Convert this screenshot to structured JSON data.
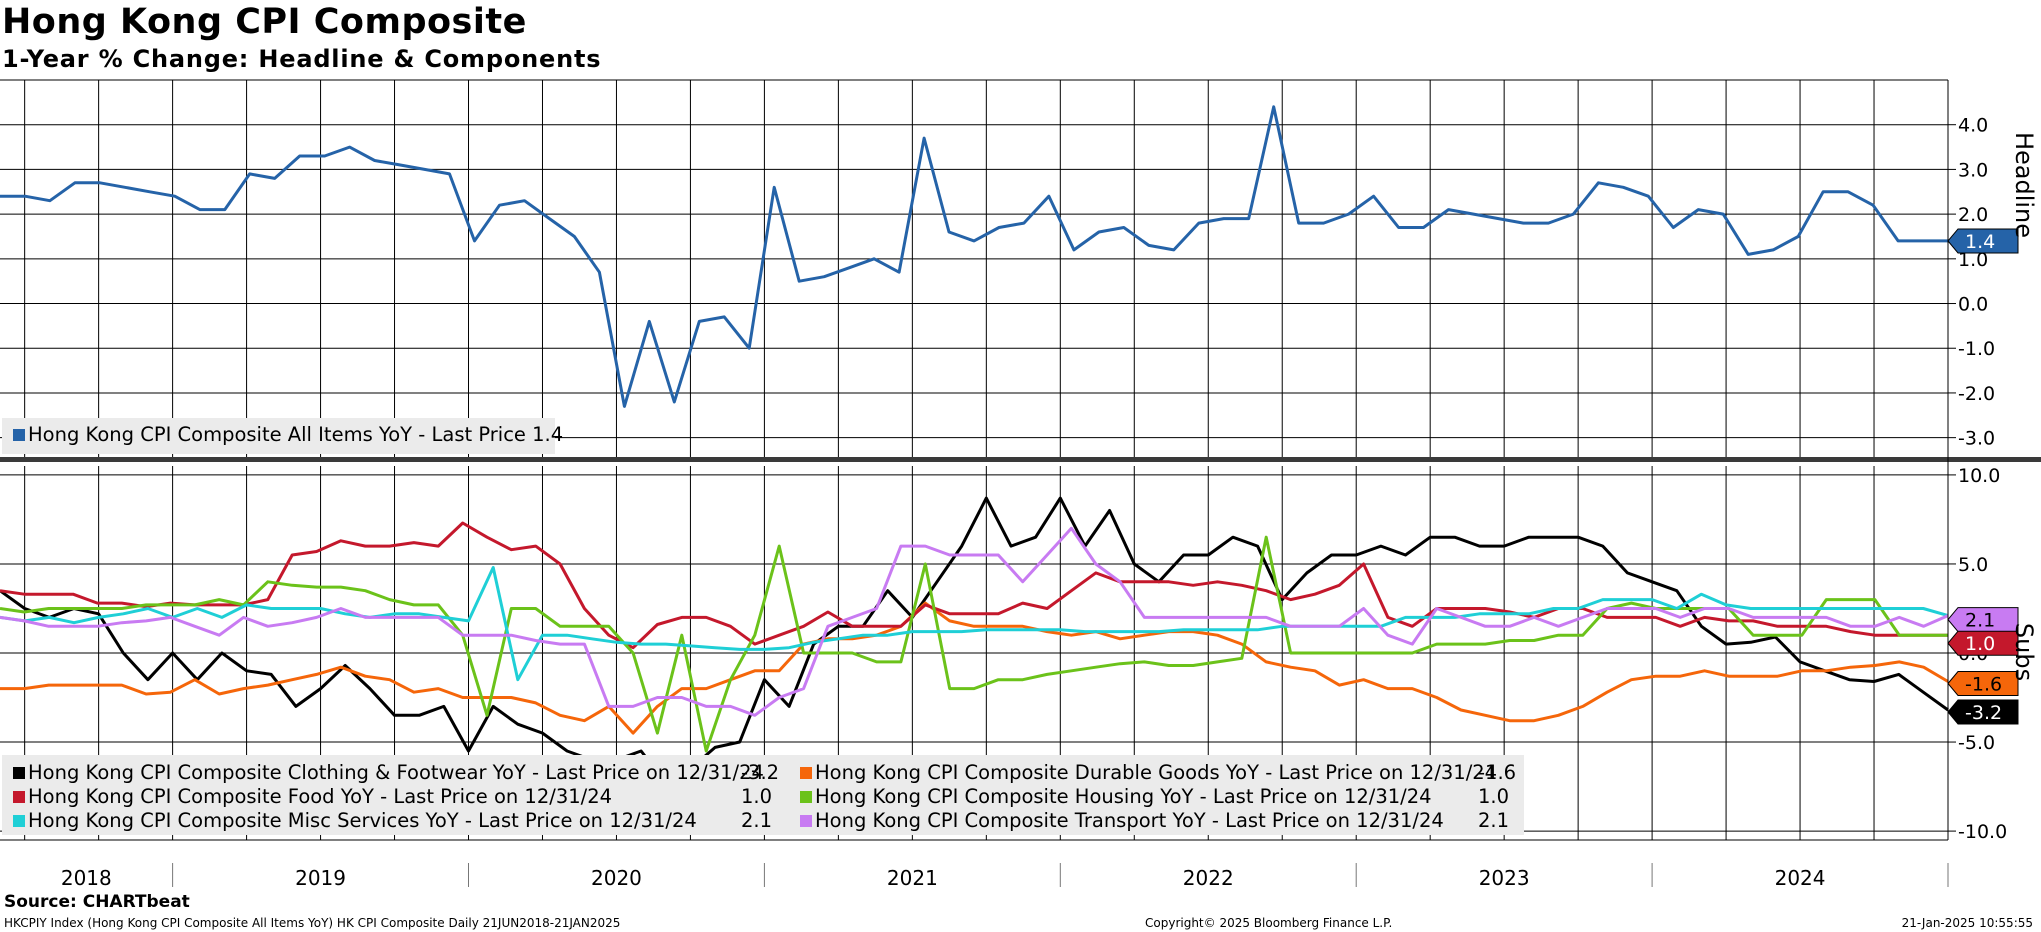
{
  "header": {
    "title": "Hong Kong CPI Composite",
    "subtitle": "1-Year % Change: Headline & Components"
  },
  "footer": {
    "source": "Source: CHARTbeat",
    "left": "HKCPIY Index (Hong Kong CPI Composite All Items YoY) HK CPI Composite  Daily 21JUN2018-21JAN2025",
    "middle": "Copyright© 2025 Bloomberg Finance L.P.",
    "right": "21-Jan-2025 10:55:55"
  },
  "x_axis": {
    "years": [
      "2018",
      "2019",
      "2020",
      "2021",
      "2022",
      "2023",
      "2024"
    ]
  },
  "chart_data": [
    {
      "type": "line",
      "panel": "top",
      "axis_title": "Headline",
      "ylim": [
        -3.5,
        5.0
      ],
      "yticks": [
        "4.0",
        "3.0",
        "2.0",
        "1.0",
        "0.0",
        "-1.0",
        "-2.0",
        "-3.0"
      ],
      "x_start": "2018-06",
      "x_end": "2025-01",
      "grid": "on",
      "legend": "bottom-left",
      "series": [
        {
          "name": "Hong Kong CPI Composite All Items YoY",
          "legend_label": "Hong Kong CPI Composite All Items YoY - Last Price 1.4",
          "last_tag": "1.4",
          "color": "#2563A8",
          "values": [
            2.4,
            2.4,
            2.3,
            2.7,
            2.7,
            2.6,
            2.5,
            2.4,
            2.1,
            2.1,
            2.9,
            2.8,
            3.3,
            3.3,
            3.5,
            3.2,
            3.1,
            3.0,
            2.9,
            1.4,
            2.2,
            2.3,
            1.9,
            1.5,
            0.7,
            -2.3,
            -0.4,
            -2.2,
            -0.4,
            -0.3,
            -1.0,
            2.6,
            0.5,
            0.6,
            0.8,
            1.0,
            0.7,
            3.7,
            1.6,
            1.4,
            1.7,
            1.8,
            2.4,
            1.2,
            1.6,
            1.7,
            1.3,
            1.2,
            1.8,
            1.9,
            1.9,
            4.4,
            1.8,
            1.8,
            2.0,
            2.4,
            1.7,
            1.7,
            2.1,
            2.0,
            1.9,
            1.8,
            1.8,
            2.0,
            2.7,
            2.6,
            2.4,
            1.7,
            2.1,
            2.0,
            1.1,
            1.2,
            1.5,
            2.5,
            2.5,
            2.2,
            1.4,
            1.4,
            1.4
          ]
        }
      ]
    },
    {
      "type": "line",
      "panel": "bottom",
      "axis_title": "Subs",
      "ylim": [
        -10.5,
        10.5
      ],
      "yticks": [
        "10.0",
        "5.0",
        "0.0",
        "-5.0",
        "-10.0"
      ],
      "x_start": "2018-06",
      "x_end": "2025-01",
      "grid": "on",
      "legend": "bottom-left",
      "series": [
        {
          "name": "Hong Kong CPI Composite Clothing & Footwear YoY",
          "legend_label": "Hong Kong CPI Composite Clothing & Footwear YoY - Last Price on 12/31/24",
          "last_value": "-3.2",
          "last_tag": "-3.2",
          "color": "#000000",
          "values": [
            3.5,
            2.5,
            2.0,
            2.5,
            2.2,
            0,
            -1.5,
            0,
            -1.5,
            0,
            -1.0,
            -1.2,
            -3.0,
            -2.0,
            -0.7,
            -2.0,
            -3.5,
            -3.5,
            -3.0,
            -5.5,
            -3.0,
            -4.0,
            -4.5,
            -5.5,
            -6.0,
            -6.0,
            -5.5,
            -7.3,
            -6.5,
            -5.3,
            -5.0,
            -1.5,
            -3.0,
            0.5,
            1.5,
            1.5,
            3.5,
            2.0,
            4.0,
            6.0,
            8.7,
            6.0,
            6.5,
            8.7,
            6.0,
            8.0,
            5.0,
            4.0,
            5.5,
            5.5,
            6.5,
            6.0,
            3.0,
            4.5,
            5.5,
            5.5,
            6.0,
            5.5,
            6.5,
            6.5,
            6.0,
            6.0,
            6.5,
            6.5,
            6.5,
            6.0,
            4.5,
            4.0,
            3.5,
            1.5,
            0.5,
            0.6,
            0.9,
            -0.5,
            -1.0,
            -1.5,
            -1.6,
            -1.2,
            -2.2,
            -3.2
          ]
        },
        {
          "name": "Hong Kong CPI Composite Durable Goods YoY",
          "legend_label": "Hong Kong CPI Composite Durable Goods YoY - Last Price on 12/31/24",
          "last_value": "-1.6",
          "last_tag": "-1.6",
          "color": "#F5660A",
          "values": [
            -2.0,
            -2.0,
            -1.8,
            -1.8,
            -1.8,
            -1.8,
            -2.3,
            -2.2,
            -1.5,
            -2.3,
            -2.0,
            -1.8,
            -1.5,
            -1.2,
            -0.8,
            -1.3,
            -1.5,
            -2.2,
            -2.0,
            -2.5,
            -2.5,
            -2.5,
            -2.8,
            -3.5,
            -3.8,
            -3.0,
            -4.5,
            -3.0,
            -2.0,
            -2.0,
            -1.5,
            -1.0,
            -1.0,
            0.5,
            0.8,
            0.8,
            1.0,
            1.5,
            2.8,
            1.8,
            1.5,
            1.5,
            1.5,
            1.2,
            1.0,
            1.2,
            0.8,
            1.0,
            1.2,
            1.2,
            1.0,
            0.5,
            -0.5,
            -0.8,
            -1.0,
            -1.8,
            -1.5,
            -2.0,
            -2.0,
            -2.5,
            -3.2,
            -3.5,
            -3.8,
            -3.8,
            -3.5,
            -3.0,
            -2.2,
            -1.5,
            -1.3,
            -1.3,
            -1.0,
            -1.3,
            -1.3,
            -1.3,
            -1.0,
            -1.0,
            -0.8,
            -0.7,
            -0.5,
            -0.8,
            -1.6
          ]
        },
        {
          "name": "Hong Kong CPI Composite Food YoY",
          "legend_label": "Hong Kong CPI Composite Food YoY - Last Price on 12/31/24",
          "last_value": "1.0",
          "last_tag": "1.0",
          "color": "#C4182C",
          "values": [
            3.5,
            3.3,
            3.3,
            3.3,
            2.8,
            2.8,
            2.6,
            2.8,
            2.7,
            2.7,
            2.7,
            3.0,
            5.5,
            5.7,
            6.3,
            6.0,
            6.0,
            6.2,
            6.0,
            7.3,
            6.5,
            5.8,
            6.0,
            5.0,
            2.5,
            1.0,
            0.3,
            1.6,
            2.0,
            2.0,
            1.5,
            0.5,
            1.0,
            1.5,
            2.3,
            1.5,
            1.5,
            1.5,
            2.7,
            2.2,
            2.2,
            2.2,
            2.8,
            2.5,
            3.5,
            4.5,
            4.0,
            4.0,
            4.0,
            3.8,
            4.0,
            3.8,
            3.5,
            3.0,
            3.3,
            3.8,
            5.0,
            2.0,
            1.5,
            2.5,
            2.5,
            2.5,
            2.3,
            2.0,
            2.5,
            2.5,
            2.0,
            2.0,
            2.0,
            1.5,
            2.0,
            1.8,
            1.8,
            1.5,
            1.5,
            1.5,
            1.2,
            1.0,
            1.0,
            1.0,
            1.0
          ]
        },
        {
          "name": "Hong Kong CPI Composite Housing YoY",
          "legend_label": "Hong Kong CPI Composite Housing YoY - Last Price on 12/31/24",
          "last_value": "1.0",
          "last_tag": "",
          "color": "#6BC21A",
          "values": [
            2.5,
            2.3,
            2.5,
            2.5,
            2.5,
            2.5,
            2.7,
            2.7,
            2.7,
            3.0,
            2.7,
            4.0,
            3.8,
            3.7,
            3.7,
            3.5,
            3.0,
            2.7,
            2.7,
            1.0,
            -3.5,
            2.5,
            2.5,
            1.5,
            1.5,
            1.5,
            0.0,
            -4.5,
            1.0,
            -5.5,
            -1.5,
            1.0,
            6.0,
            0.0,
            0.0,
            0.0,
            -0.5,
            -0.5,
            5.0,
            -2.0,
            -2.0,
            -1.5,
            -1.5,
            -1.2,
            -1.0,
            -0.8,
            -0.6,
            -0.5,
            -0.7,
            -0.7,
            -0.5,
            -0.3,
            6.5,
            0.0,
            0.0,
            0.0,
            0.0,
            0.0,
            0.0,
            0.5,
            0.5,
            0.5,
            0.7,
            0.7,
            1.0,
            1.0,
            2.5,
            2.8,
            2.5,
            2.5,
            2.5,
            2.5,
            1.0,
            1.0,
            1.0,
            3.0,
            3.0,
            3.0,
            1.0,
            1.0,
            1.0
          ]
        },
        {
          "name": "Hong Kong CPI Composite Misc Services YoY",
          "legend_label": "Hong Kong CPI Composite Misc Services YoY - Last Price on 12/31/24",
          "last_value": "2.1",
          "last_tag": "",
          "color": "#1FCFD6",
          "values": [
            2.0,
            1.8,
            2.0,
            1.7,
            2.0,
            2.2,
            2.5,
            2.0,
            2.5,
            2.0,
            2.7,
            2.5,
            2.5,
            2.5,
            2.2,
            2.0,
            2.2,
            2.2,
            2.0,
            1.8,
            4.8,
            -1.5,
            1.0,
            1.0,
            0.8,
            0.6,
            0.5,
            0.5,
            0.4,
            0.3,
            0.2,
            0.2,
            0.3,
            0.6,
            0.8,
            1.0,
            1.0,
            1.2,
            1.2,
            1.2,
            1.3,
            1.3,
            1.3,
            1.3,
            1.2,
            1.2,
            1.2,
            1.2,
            1.3,
            1.3,
            1.3,
            1.3,
            1.5,
            1.5,
            1.5,
            1.5,
            1.5,
            2.0,
            2.0,
            2.0,
            2.2,
            2.2,
            2.2,
            2.5,
            2.5,
            3.0,
            3.0,
            3.0,
            2.5,
            3.3,
            2.7,
            2.5,
            2.5,
            2.5,
            2.5,
            2.5,
            2.5,
            2.5,
            2.5,
            2.1
          ]
        },
        {
          "name": "Hong Kong CPI Composite Transport YoY",
          "legend_label": "Hong Kong CPI Composite Transport YoY - Last Price on 12/31/24",
          "last_value": "2.1",
          "last_tag": "2.1",
          "color": "#C87BF2",
          "values": [
            2.0,
            1.8,
            1.5,
            1.5,
            1.5,
            1.7,
            1.8,
            2.0,
            1.5,
            1.0,
            2.0,
            1.5,
            1.7,
            2.0,
            2.5,
            2.0,
            2.0,
            2.0,
            2.0,
            1.0,
            1.0,
            1.0,
            0.7,
            0.5,
            0.5,
            -3.0,
            -3.0,
            -2.5,
            -2.5,
            -3.0,
            -3.0,
            -3.5,
            -2.5,
            -2.0,
            1.5,
            2.0,
            2.5,
            6.0,
            6.0,
            5.5,
            5.5,
            5.5,
            4.0,
            5.5,
            7.0,
            5.0,
            4.0,
            2.0,
            2.0,
            2.0,
            2.0,
            2.0,
            2.0,
            1.5,
            1.5,
            1.5,
            2.5,
            1.0,
            0.5,
            2.5,
            2.0,
            1.5,
            1.5,
            2.0,
            1.5,
            2.0,
            2.5,
            2.5,
            2.5,
            2.0,
            2.5,
            2.5,
            2.0,
            2.0,
            2.0,
            2.0,
            1.5,
            1.5,
            2.0,
            1.5,
            2.1
          ]
        }
      ]
    }
  ]
}
